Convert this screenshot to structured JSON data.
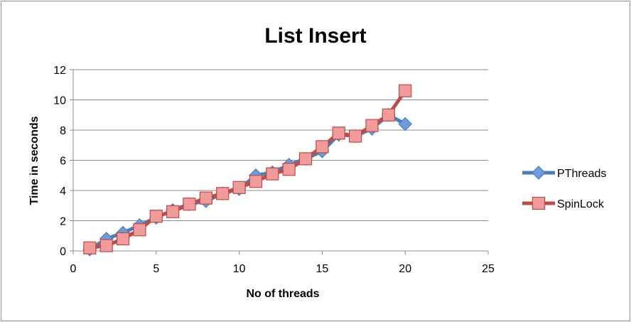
{
  "chart_data": {
    "type": "line",
    "title": "List Insert",
    "xlabel": "No of threads",
    "ylabel": "Time in seconds",
    "xlim": [
      0,
      25
    ],
    "ylim": [
      0,
      12
    ],
    "xticks": [
      "0",
      "5",
      "10",
      "15",
      "20",
      "25"
    ],
    "yticks": [
      "0",
      "2",
      "4",
      "6",
      "8",
      "10",
      "12"
    ],
    "grid": "horizontal",
    "legend_position": "right",
    "x": [
      1,
      2,
      3,
      4,
      5,
      6,
      7,
      8,
      9,
      10,
      11,
      12,
      13,
      14,
      15,
      16,
      17,
      18,
      19,
      20
    ],
    "series": [
      {
        "name": "PThreads",
        "marker": "diamond",
        "color": "#4a7ebb",
        "fill": "#6d9be0",
        "values": [
          0.1,
          0.8,
          1.2,
          1.7,
          2.2,
          2.7,
          3.1,
          3.3,
          3.8,
          4.1,
          5.0,
          5.2,
          5.7,
          6.1,
          6.6,
          7.7,
          7.6,
          8.1,
          9.0,
          8.4
        ]
      },
      {
        "name": "SpinLock",
        "marker": "square",
        "color": "#be4b48",
        "fill": "#f29b9b",
        "values": [
          0.2,
          0.35,
          0.8,
          1.4,
          2.3,
          2.6,
          3.1,
          3.5,
          3.8,
          4.2,
          4.6,
          5.1,
          5.4,
          6.1,
          6.9,
          7.8,
          7.6,
          8.3,
          9.0,
          10.6
        ]
      }
    ]
  }
}
